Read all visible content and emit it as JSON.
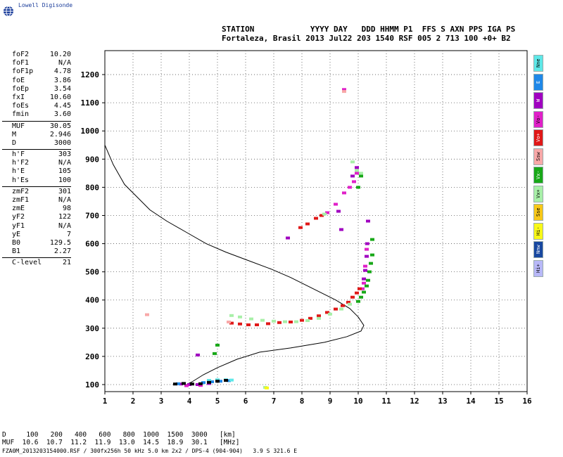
{
  "branding": {
    "logo_text": "Lowell Digisonde"
  },
  "header": {
    "line1": "STATION            YYYY DAY   DDD HHMM P1  FFS S AXN PPS IGA PS",
    "line2": "Fortaleza, Brasil 2013 Jul22 203 1540 RSF 005 2 713 100 +0+ B2"
  },
  "params": {
    "group1": [
      {
        "k": "foF2",
        "v": "10.20"
      },
      {
        "k": "foF1",
        "v": "N/A"
      },
      {
        "k": "foF1p",
        "v": "4.78"
      },
      {
        "k": "foE",
        "v": "3.86"
      },
      {
        "k": "foEp",
        "v": "3.54"
      },
      {
        "k": "fxI",
        "v": "10.60"
      },
      {
        "k": "foEs",
        "v": "4.45"
      },
      {
        "k": "fmin",
        "v": "3.60"
      }
    ],
    "group2": [
      {
        "k": "MUF",
        "v": "30.05"
      },
      {
        "k": "M",
        "v": "2.946"
      },
      {
        "k": "D",
        "v": "3000"
      }
    ],
    "group3": [
      {
        "k": "h'F",
        "v": "303"
      },
      {
        "k": "h'F2",
        "v": "N/A"
      },
      {
        "k": "h'E",
        "v": "105"
      },
      {
        "k": "h'Es",
        "v": "100"
      }
    ],
    "group4": [
      {
        "k": "zmF2",
        "v": "301"
      },
      {
        "k": "zmF1",
        "v": "N/A"
      },
      {
        "k": "zmE",
        "v": "98"
      },
      {
        "k": "yF2",
        "v": "122"
      },
      {
        "k": "yF1",
        "v": "N/A"
      },
      {
        "k": "yE",
        "v": "7"
      },
      {
        "k": "B0",
        "v": "129.5"
      },
      {
        "k": "B1",
        "v": "2.27"
      }
    ],
    "group5": [
      {
        "k": "C-level",
        "v": "21"
      }
    ]
  },
  "legend": [
    {
      "label": "Nne",
      "color": "#5ee8e8"
    },
    {
      "label": "E",
      "color": "#1f88e8"
    },
    {
      "label": "W",
      "color": "#a000c0"
    },
    {
      "label": "Vo-",
      "color": "#e020c8"
    },
    {
      "label": "Vo+",
      "color": "#e01818"
    },
    {
      "label": "Ssw",
      "color": "#f8a8a8"
    },
    {
      "label": "Vx-",
      "color": "#18a818"
    },
    {
      "label": "Vx+",
      "color": "#a8f0a8"
    },
    {
      "label": "Sse",
      "color": "#f8c818"
    },
    {
      "label": "Hi-",
      "color": "#f8f818"
    },
    {
      "label": "Nnw",
      "color": "#1848a0"
    },
    {
      "label": "Hi+",
      "color": "#b8b8f8"
    }
  ],
  "footer": {
    "line1": "D     100   200   400   600   800  1000  1500  3000   [km]",
    "line2": "MUF  10.6  10.7  11.2  11.9  13.0  14.5  18.9  30.1   [MHz]",
    "line3": "FZA0M_2013203154000.RSF / 300fx256h 50 kHz 5.0 km 2x2 / DPS-4 (904-904)   3.9 S 321.6 E"
  },
  "chart_data": {
    "type": "scatter",
    "xlim": [
      1,
      16
    ],
    "ylim": [
      75,
      1285
    ],
    "x_ticks": [
      1,
      2,
      3,
      4,
      5,
      6,
      7,
      8,
      9,
      10,
      11,
      12,
      13,
      14,
      15,
      16
    ],
    "y_ticks": [
      100,
      200,
      300,
      400,
      500,
      600,
      700,
      800,
      900,
      1000,
      1100,
      1200
    ],
    "grid": true,
    "profile_line": [
      [
        1.0,
        950
      ],
      [
        1.3,
        880
      ],
      [
        1.7,
        810
      ],
      [
        2.1,
        770
      ],
      [
        2.6,
        720
      ],
      [
        3.2,
        680
      ],
      [
        3.9,
        640
      ],
      [
        4.6,
        600
      ],
      [
        5.3,
        570
      ],
      [
        6.1,
        540
      ],
      [
        6.9,
        510
      ],
      [
        7.6,
        480
      ],
      [
        8.2,
        450
      ],
      [
        8.7,
        425
      ],
      [
        9.2,
        400
      ],
      [
        9.7,
        370
      ],
      [
        10.0,
        340
      ],
      [
        10.2,
        310
      ],
      [
        10.1,
        290
      ],
      [
        9.6,
        270
      ],
      [
        8.8,
        250
      ],
      [
        7.6,
        230
      ],
      [
        6.5,
        215
      ],
      [
        5.7,
        190
      ],
      [
        5.0,
        160
      ],
      [
        4.5,
        135
      ],
      [
        4.1,
        110
      ],
      [
        3.9,
        100
      ]
    ],
    "series": [
      {
        "color": "#a000c0",
        "points": [
          [
            3.7,
            102
          ],
          [
            4.0,
            100
          ],
          [
            4.3,
            100
          ],
          [
            4.7,
            104
          ],
          [
            9.4,
            650
          ],
          [
            9.3,
            715
          ],
          [
            9.8,
            840
          ],
          [
            9.95,
            870
          ],
          [
            10.2,
            475
          ],
          [
            10.25,
            505
          ],
          [
            10.3,
            555
          ],
          [
            10.32,
            600
          ],
          [
            10.35,
            680
          ],
          [
            4.3,
            205
          ],
          [
            7.5,
            620
          ]
        ]
      },
      {
        "color": "#e020c8",
        "points": [
          [
            9.5,
            1147
          ],
          [
            8.9,
            710
          ],
          [
            9.2,
            740
          ],
          [
            9.5,
            780
          ],
          [
            9.7,
            800
          ],
          [
            9.85,
            820
          ],
          [
            9.95,
            850
          ],
          [
            10.15,
            440
          ],
          [
            10.2,
            460
          ],
          [
            10.25,
            520
          ],
          [
            10.3,
            580
          ],
          [
            3.9,
            96
          ],
          [
            4.4,
            97
          ]
        ]
      },
      {
        "color": "#e01818",
        "points": [
          [
            5.5,
            318
          ],
          [
            5.8,
            315
          ],
          [
            6.1,
            312
          ],
          [
            6.4,
            312
          ],
          [
            6.8,
            316
          ],
          [
            7.2,
            320
          ],
          [
            7.6,
            322
          ],
          [
            8.0,
            328
          ],
          [
            8.3,
            335
          ],
          [
            8.6,
            344
          ],
          [
            8.9,
            356
          ],
          [
            9.2,
            368
          ],
          [
            9.45,
            380
          ],
          [
            9.65,
            392
          ],
          [
            9.8,
            410
          ],
          [
            9.95,
            425
          ],
          [
            10.05,
            440
          ],
          [
            7.95,
            657
          ],
          [
            8.2,
            670
          ],
          [
            8.5,
            690
          ],
          [
            8.7,
            700
          ]
        ]
      },
      {
        "color": "#18a818",
        "points": [
          [
            10.0,
            395
          ],
          [
            10.1,
            410
          ],
          [
            10.2,
            428
          ],
          [
            10.3,
            450
          ],
          [
            10.35,
            470
          ],
          [
            10.4,
            500
          ],
          [
            10.45,
            530
          ],
          [
            10.5,
            560
          ],
          [
            10.5,
            615
          ],
          [
            10.0,
            800
          ],
          [
            10.1,
            840
          ],
          [
            4.9,
            210
          ],
          [
            5.0,
            240
          ]
        ]
      },
      {
        "color": "#a8f0a8",
        "points": [
          [
            5.5,
            345
          ],
          [
            5.8,
            340
          ],
          [
            6.2,
            333
          ],
          [
            6.6,
            328
          ],
          [
            7.0,
            325
          ],
          [
            7.4,
            323
          ],
          [
            7.8,
            323
          ],
          [
            8.2,
            327
          ],
          [
            8.6,
            335
          ],
          [
            9.0,
            350
          ],
          [
            9.4,
            368
          ],
          [
            9.7,
            385
          ],
          [
            9.8,
            890
          ],
          [
            9.95,
            860
          ],
          [
            10.1,
            850
          ],
          [
            8.8,
            705
          ],
          [
            6.7,
            90
          ]
        ]
      },
      {
        "color": "#1f88e8",
        "points": [
          [
            4.5,
            107
          ],
          [
            4.8,
            110
          ],
          [
            5.1,
            112
          ],
          [
            5.4,
            114
          ],
          [
            3.6,
            103
          ]
        ]
      },
      {
        "color": "#5ee8e8",
        "points": [
          [
            4.7,
            115
          ],
          [
            5.0,
            117
          ],
          [
            5.3,
            117
          ],
          [
            5.5,
            116
          ]
        ]
      },
      {
        "color": "#f8a8a8",
        "points": [
          [
            2.5,
            348
          ],
          [
            5.4,
            322
          ],
          [
            9.5,
            1140
          ]
        ]
      },
      {
        "color": "#f8f818",
        "points": [
          [
            6.75,
            88
          ]
        ]
      },
      {
        "color": "#000000",
        "points": [
          [
            3.5,
            102
          ],
          [
            3.8,
            104
          ],
          [
            4.1,
            102
          ],
          [
            4.4,
            103
          ],
          [
            4.7,
            108
          ],
          [
            5.0,
            112
          ],
          [
            5.3,
            115
          ]
        ]
      }
    ]
  }
}
